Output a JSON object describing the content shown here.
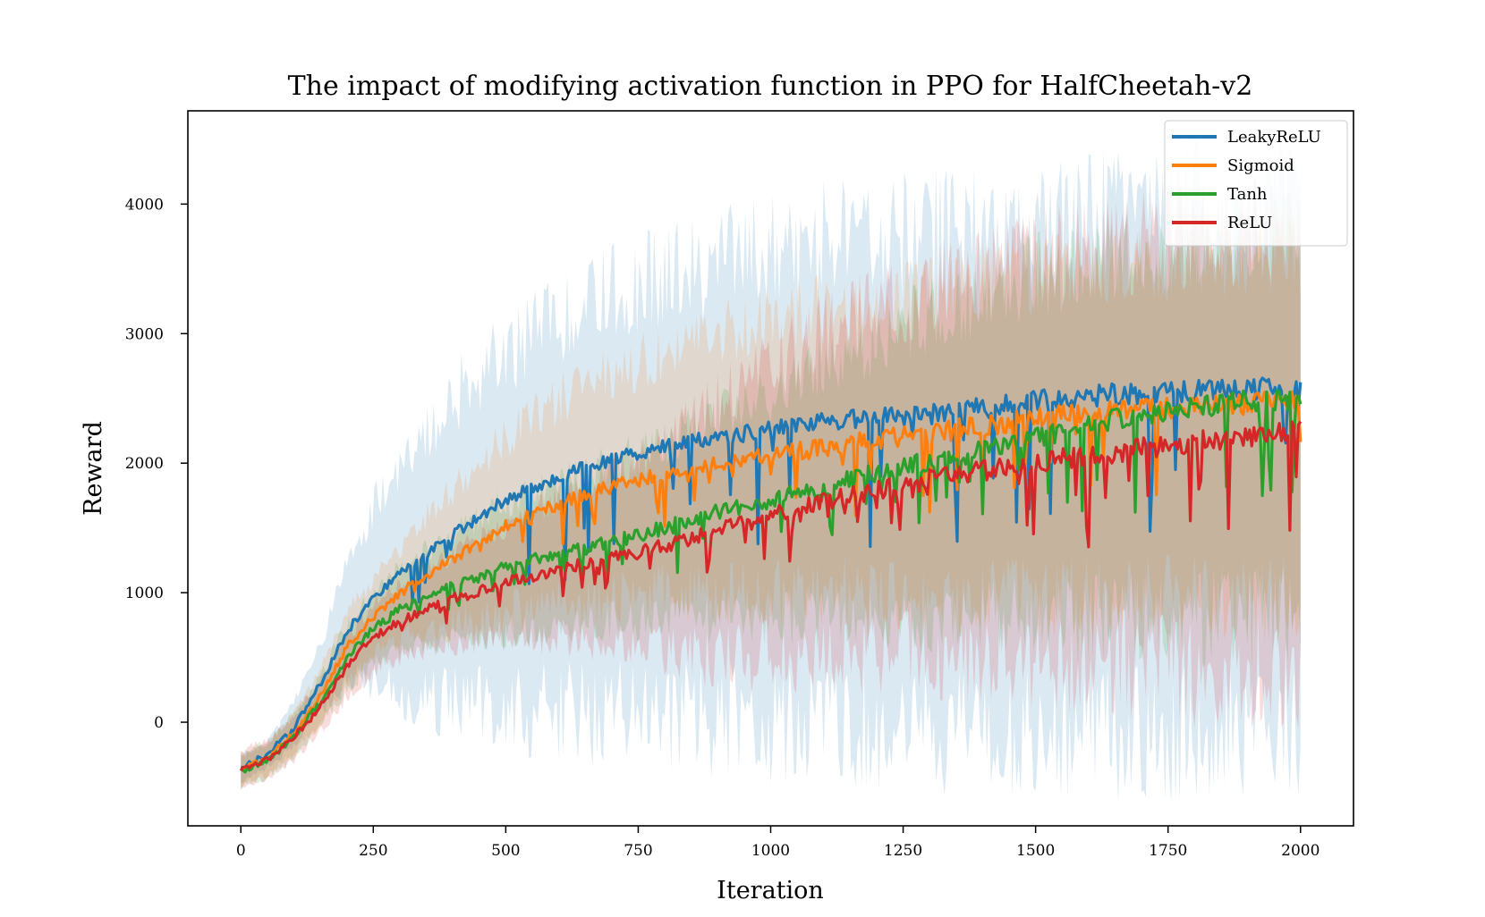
{
  "chart_data": {
    "type": "line",
    "title": "The impact of modifying activation function in PPO for HalfCheetah-v2",
    "xlabel": "Iteration",
    "ylabel": "Reward",
    "xlim": [
      -100,
      2100
    ],
    "ylim": [
      -800,
      4720
    ],
    "xticks": [
      0,
      250,
      500,
      750,
      1000,
      1250,
      1500,
      1750,
      2000
    ],
    "yticks": [
      0,
      1000,
      2000,
      3000,
      4000
    ],
    "legend": "top-right",
    "grid": false,
    "series": [
      {
        "name": "LeakyReLU",
        "color": "#1f77b4",
        "x": [
          0,
          50,
          100,
          150,
          200,
          250,
          300,
          400,
          500,
          600,
          700,
          800,
          900,
          1000,
          1100,
          1200,
          1300,
          1400,
          1500,
          1600,
          1700,
          1800,
          1900,
          2000
        ],
        "y": [
          -350,
          -250,
          -50,
          300,
          700,
          950,
          1150,
          1450,
          1720,
          1900,
          2030,
          2120,
          2200,
          2260,
          2320,
          2360,
          2380,
          2420,
          2480,
          2520,
          2540,
          2560,
          2580,
          2560
        ],
        "band_low": [
          -450,
          -350,
          -180,
          100,
          300,
          300,
          250,
          150,
          100,
          80,
          60,
          40,
          20,
          0,
          -20,
          -60,
          -60,
          -60,
          -80,
          -80,
          -90,
          -100,
          -110,
          -110
        ],
        "band_high": [
          -250,
          -150,
          150,
          600,
          1200,
          1650,
          2000,
          2500,
          2850,
          3100,
          3300,
          3450,
          3550,
          3600,
          3700,
          3750,
          3800,
          3850,
          3900,
          3950,
          4000,
          4020,
          4050,
          4050
        ]
      },
      {
        "name": "Sigmoid",
        "color": "#ff7f0e",
        "x": [
          0,
          50,
          100,
          150,
          200,
          250,
          300,
          400,
          500,
          600,
          700,
          800,
          900,
          1000,
          1100,
          1200,
          1300,
          1400,
          1500,
          1600,
          1700,
          1800,
          1900,
          2000
        ],
        "y": [
          -370,
          -280,
          -90,
          200,
          580,
          820,
          1000,
          1260,
          1520,
          1690,
          1820,
          1920,
          2000,
          2060,
          2120,
          2180,
          2230,
          2290,
          2350,
          2380,
          2410,
          2440,
          2460,
          2480
        ],
        "band_low": [
          -480,
          -400,
          -250,
          0,
          300,
          550,
          650,
          750,
          850,
          900,
          950,
          1000,
          1000,
          1000,
          1000,
          1000,
          980,
          970,
          960,
          950,
          950,
          950,
          950,
          950
        ],
        "band_high": [
          -260,
          -160,
          70,
          400,
          850,
          1100,
          1350,
          1800,
          2200,
          2500,
          2700,
          2850,
          3000,
          3100,
          3200,
          3250,
          3300,
          3400,
          3450,
          3500,
          3550,
          3600,
          3600,
          3600
        ]
      },
      {
        "name": "Tanh",
        "color": "#2ca02c",
        "x": [
          0,
          50,
          100,
          150,
          200,
          250,
          300,
          400,
          500,
          600,
          700,
          800,
          900,
          1000,
          1100,
          1200,
          1300,
          1400,
          1500,
          1600,
          1700,
          1800,
          1900,
          2000
        ],
        "y": [
          -380,
          -290,
          -120,
          150,
          500,
          720,
          870,
          1050,
          1200,
          1300,
          1390,
          1500,
          1620,
          1720,
          1820,
          1920,
          2010,
          2100,
          2200,
          2300,
          2380,
          2430,
          2480,
          2500
        ],
        "band_low": [
          -500,
          -420,
          -280,
          0,
          250,
          450,
          550,
          650,
          700,
          750,
          780,
          800,
          800,
          800,
          800,
          800,
          800,
          800,
          800,
          800,
          800,
          800,
          800,
          800
        ],
        "band_high": [
          -250,
          -150,
          50,
          350,
          750,
          1000,
          1200,
          1450,
          1700,
          1850,
          2000,
          2150,
          2350,
          2550,
          2750,
          2950,
          3150,
          3300,
          3450,
          3550,
          3650,
          3750,
          3800,
          3800
        ]
      },
      {
        "name": "ReLU",
        "color": "#d62728",
        "x": [
          0,
          50,
          100,
          150,
          200,
          250,
          300,
          400,
          500,
          600,
          700,
          800,
          900,
          1000,
          1100,
          1200,
          1300,
          1400,
          1500,
          1600,
          1700,
          1800,
          1900,
          2000
        ],
        "y": [
          -360,
          -290,
          -120,
          120,
          430,
          650,
          780,
          950,
          1080,
          1180,
          1260,
          1360,
          1500,
          1600,
          1700,
          1790,
          1870,
          1940,
          2000,
          2060,
          2110,
          2160,
          2200,
          2250
        ],
        "band_low": [
          -500,
          -430,
          -300,
          -60,
          200,
          400,
          500,
          600,
          650,
          650,
          600,
          550,
          500,
          500,
          500,
          500,
          500,
          500,
          450,
          450,
          450,
          400,
          400,
          400
        ],
        "band_high": [
          -220,
          -150,
          60,
          300,
          660,
          900,
          1050,
          1300,
          1500,
          1700,
          1900,
          2150,
          2450,
          2750,
          3000,
          3200,
          3350,
          3450,
          3550,
          3650,
          3700,
          3750,
          3800,
          3850
        ]
      }
    ]
  }
}
